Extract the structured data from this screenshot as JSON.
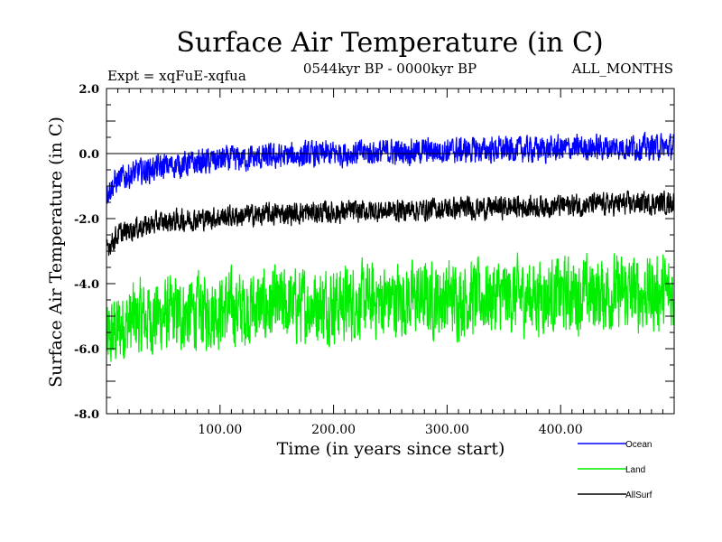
{
  "chart_data": {
    "type": "line",
    "title": "Surface Air Temperature (in C)",
    "subtitle_left": "Expt = xqFuE-xqfua",
    "subtitle_center": "0544kyr BP - 0000kyr BP",
    "subtitle_right": "ALL_MONTHS",
    "xlabel": "Time (in years since start)",
    "ylabel": "Surface Air Temperature (in C)",
    "xlim": [
      0,
      500
    ],
    "ylim": [
      -8.0,
      2.0
    ],
    "xticks": [
      100,
      200,
      300,
      400
    ],
    "xtick_labels": [
      "100.00",
      "200.00",
      "300.00",
      "400.00"
    ],
    "yticks": [
      -8,
      -6,
      -4,
      -2,
      0,
      2
    ],
    "ytick_labels": [
      "-8.0",
      "-6.0",
      "-4.0",
      "-2.0",
      "0.0",
      "2.0"
    ],
    "zero_line": 0,
    "legend_position": "bottom-right",
    "series": [
      {
        "name": "Ocean",
        "color": "#0000ff",
        "x": [
          0,
          10,
          25,
          50,
          100,
          150,
          200,
          250,
          300,
          350,
          400,
          450,
          500
        ],
        "values": [
          -1.2,
          -0.8,
          -0.6,
          -0.4,
          -0.2,
          -0.1,
          0.0,
          0.05,
          0.1,
          0.12,
          0.15,
          0.2,
          0.2
        ],
        "noise_amplitude": 0.35
      },
      {
        "name": "Land",
        "color": "#00ee00",
        "x": [
          0,
          10,
          25,
          50,
          100,
          150,
          200,
          250,
          300,
          350,
          400,
          450,
          500
        ],
        "values": [
          -5.8,
          -5.4,
          -5.1,
          -5.0,
          -4.8,
          -4.7,
          -4.6,
          -4.5,
          -4.45,
          -4.4,
          -4.35,
          -4.3,
          -4.3
        ],
        "noise_amplitude": 1.0
      },
      {
        "name": "AllSurf",
        "color": "#000000",
        "x": [
          0,
          10,
          25,
          50,
          100,
          150,
          200,
          250,
          300,
          350,
          400,
          450,
          500
        ],
        "values": [
          -2.9,
          -2.5,
          -2.3,
          -2.1,
          -1.95,
          -1.85,
          -1.8,
          -1.75,
          -1.7,
          -1.65,
          -1.6,
          -1.55,
          -1.5
        ],
        "noise_amplitude": 0.3
      }
    ]
  }
}
